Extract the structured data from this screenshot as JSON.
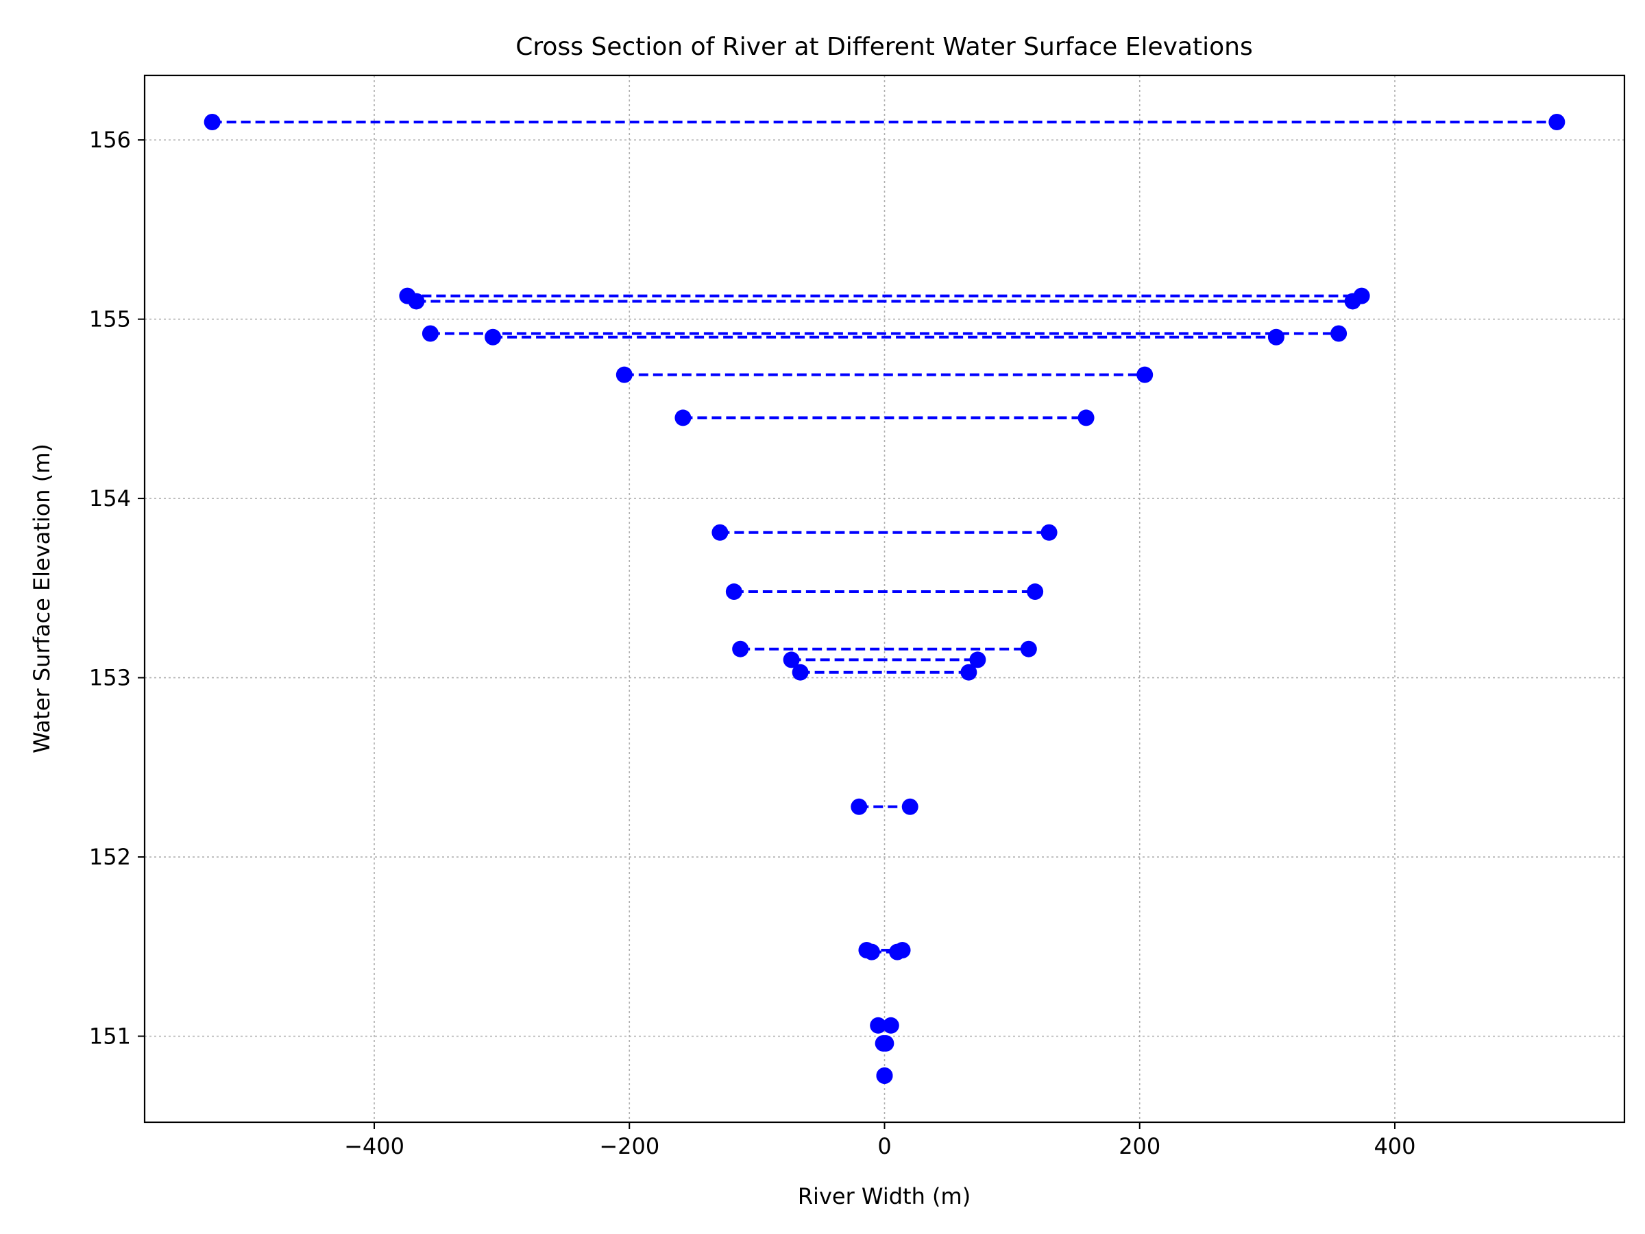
{
  "chart_data": {
    "type": "line",
    "title": "Cross Section of River at Different Water Surface Elevations",
    "xlabel": "River Width (m)",
    "ylabel": "Water Surface Elevation (m)",
    "xlim": [
      -580,
      580
    ],
    "ylim": [
      150.52,
      156.36
    ],
    "xticks": [
      -400,
      -200,
      0,
      200,
      400
    ],
    "xtick_labels": [
      "−400",
      "−200",
      "0",
      "200",
      "400"
    ],
    "yticks": [
      151,
      152,
      153,
      154,
      155,
      156
    ],
    "ytick_labels": [
      "151",
      "152",
      "153",
      "154",
      "155",
      "156"
    ],
    "grid": true,
    "line_style": "dashed",
    "marker": "circle",
    "color": "#0000ff",
    "series": [
      {
        "x": [
          -527,
          527
        ],
        "y": [
          156.1,
          156.1
        ]
      },
      {
        "x": [
          -374,
          374
        ],
        "y": [
          155.13,
          155.13
        ]
      },
      {
        "x": [
          -367,
          367
        ],
        "y": [
          155.1,
          155.1
        ]
      },
      {
        "x": [
          -356,
          356
        ],
        "y": [
          154.92,
          154.92
        ]
      },
      {
        "x": [
          -307,
          307
        ],
        "y": [
          154.9,
          154.9
        ]
      },
      {
        "x": [
          -204,
          204
        ],
        "y": [
          154.69,
          154.69
        ]
      },
      {
        "x": [
          -158,
          158
        ],
        "y": [
          154.45,
          154.45
        ]
      },
      {
        "x": [
          -129,
          129
        ],
        "y": [
          153.81,
          153.81
        ]
      },
      {
        "x": [
          -118,
          118
        ],
        "y": [
          153.48,
          153.48
        ]
      },
      {
        "x": [
          -113,
          113
        ],
        "y": [
          153.16,
          153.16
        ]
      },
      {
        "x": [
          -73,
          73
        ],
        "y": [
          153.1,
          153.1
        ]
      },
      {
        "x": [
          -66,
          66
        ],
        "y": [
          153.03,
          153.03
        ]
      },
      {
        "x": [
          -20,
          20
        ],
        "y": [
          152.28,
          152.28
        ]
      },
      {
        "x": [
          -14,
          14
        ],
        "y": [
          151.48,
          151.48
        ]
      },
      {
        "x": [
          -10,
          10
        ],
        "y": [
          151.47,
          151.47
        ]
      },
      {
        "x": [
          -5,
          5
        ],
        "y": [
          151.06,
          151.06
        ]
      },
      {
        "x": [
          -1,
          1
        ],
        "y": [
          150.96,
          150.96
        ]
      },
      {
        "x": [
          0,
          0
        ],
        "y": [
          150.78,
          150.78
        ]
      }
    ]
  }
}
